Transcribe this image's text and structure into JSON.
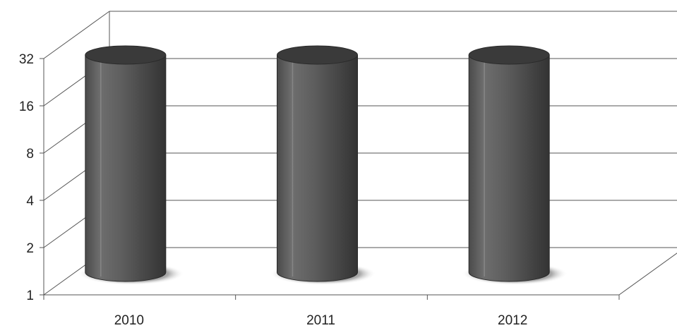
{
  "chart_data": {
    "type": "bar",
    "style": "3d-cylinder",
    "y_scale": "log2",
    "ylim": [
      1,
      32
    ],
    "y_ticks": [
      1,
      2,
      4,
      8,
      16,
      32
    ],
    "y_tick_labels": [
      "1",
      "2",
      "4",
      "8",
      "16",
      "32"
    ],
    "categories": [
      "2010",
      "2011",
      "2012"
    ],
    "values": [
      32,
      32,
      32
    ],
    "grid": true,
    "legend": "none",
    "title": "",
    "xlabel": "",
    "ylabel": "",
    "colors": {
      "bar": "#5c5c5c",
      "bar_dark": "#3a3a3a",
      "bar_light": "#8a8a8a",
      "grid": "#555555",
      "shadow": "#9a9a9a"
    }
  }
}
